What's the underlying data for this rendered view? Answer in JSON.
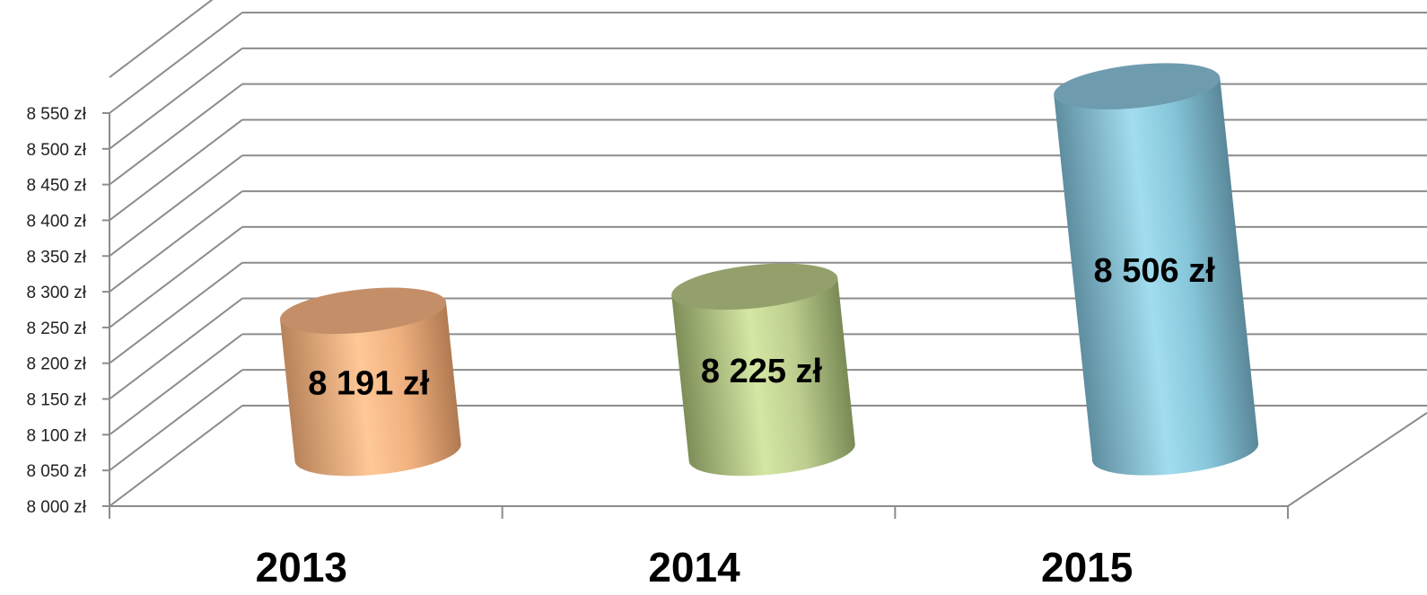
{
  "chart_data": {
    "type": "bar",
    "title": "",
    "xlabel": "",
    "ylabel": "",
    "categories": [
      "2013",
      "2014",
      "2015"
    ],
    "values": [
      8191,
      8225,
      8506
    ],
    "data_labels": [
      "8 191 zł",
      "8 225 zł",
      "8 506 zł"
    ],
    "ylim": [
      8000,
      8550
    ],
    "y_step": 50,
    "y_tick_labels": [
      "8 000 zł",
      "8 050 zł",
      "8 100 zł",
      "8 150 zł",
      "8 200 zł",
      "8 250 zł",
      "8 300 zł",
      "8 350 zł",
      "8 400 zł",
      "8 450 zł",
      "8 500 zł",
      "8 550 zł"
    ],
    "grid": true,
    "style": "3d-cylinder",
    "colors": [
      "#F5B27C",
      "#C3D69B",
      "#8ACFE3"
    ],
    "legend": "none"
  }
}
